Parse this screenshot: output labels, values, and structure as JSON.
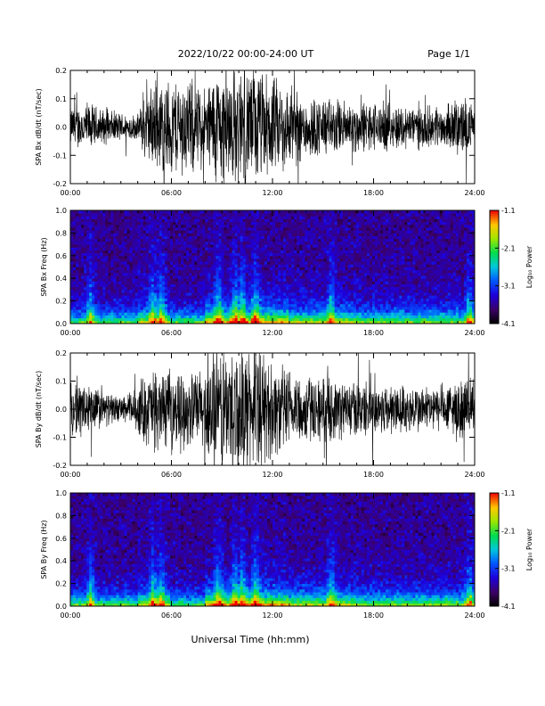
{
  "header": {
    "title": "2022/10/22  00:00-24:00 UT",
    "page": "Page 1/1"
  },
  "xaxis": {
    "label": "Universal Time (hh:mm)",
    "ticks": [
      "00:00",
      "06:00",
      "12:00",
      "18:00",
      "24:00"
    ]
  },
  "colorbar": {
    "label": "Log₁₀ Power",
    "ticks": [
      "-1.1",
      "-2.1",
      "-3.1",
      "-4.1"
    ]
  },
  "chart_data": [
    {
      "type": "line",
      "ylabel": "SPA Bx dB/dt (nT/sec)",
      "ylim": [
        -0.2,
        0.2
      ],
      "xlim": [
        0,
        24
      ],
      "yticks": [
        "0.2",
        "0.1",
        "0.0",
        "-0.1",
        "-0.2"
      ],
      "amplitude_envelope": {
        "x_hours": [
          0,
          1,
          2,
          3,
          4,
          4.3,
          5,
          6,
          7,
          8,
          8.5,
          9,
          10,
          11,
          12,
          13,
          14,
          16,
          18,
          20,
          22,
          23.5,
          24
        ],
        "amp": [
          0.08,
          0.1,
          0.07,
          0.06,
          0.05,
          0.12,
          0.18,
          0.2,
          0.2,
          0.16,
          0.22,
          0.24,
          0.24,
          0.24,
          0.2,
          0.17,
          0.13,
          0.11,
          0.1,
          0.09,
          0.08,
          0.12,
          0.07
        ]
      }
    },
    {
      "type": "heatmap",
      "ylabel": "SPA Bx Freq (Hz)",
      "ylim": [
        0,
        1
      ],
      "xlim": [
        0,
        24
      ],
      "yticks": [
        "1.0",
        "0.8",
        "0.6",
        "0.4",
        "0.2",
        "0.0"
      ],
      "colorscale": "rainbow",
      "zlim": [
        -4.1,
        -1.1
      ],
      "bursts_hours": [
        1.2,
        4.9,
        5.4,
        8.8,
        9.8,
        10.2,
        11.0,
        15.5,
        23.7
      ]
    },
    {
      "type": "line",
      "ylabel": "SPA By dB/dt (nT/sec)",
      "ylim": [
        -0.2,
        0.2
      ],
      "xlim": [
        0,
        24
      ],
      "yticks": [
        "0.2",
        "0.1",
        "0.0",
        "-0.1",
        "-0.2"
      ],
      "amplitude_envelope": {
        "x_hours": [
          0,
          1,
          2,
          3,
          3.8,
          4.3,
          5,
          6,
          7,
          8,
          8.4,
          9,
          10,
          11,
          12,
          13,
          14,
          16,
          18,
          20,
          22,
          23.5,
          24
        ],
        "amp": [
          0.1,
          0.12,
          0.07,
          0.05,
          0.08,
          0.14,
          0.16,
          0.15,
          0.15,
          0.17,
          0.25,
          0.26,
          0.26,
          0.24,
          0.2,
          0.16,
          0.14,
          0.12,
          0.11,
          0.1,
          0.09,
          0.14,
          0.09
        ]
      }
    },
    {
      "type": "heatmap",
      "ylabel": "SPA By Freq (Hz)",
      "ylim": [
        0,
        1
      ],
      "xlim": [
        0,
        24
      ],
      "yticks": [
        "1.0",
        "0.8",
        "0.6",
        "0.4",
        "0.2",
        "0.0"
      ],
      "colorscale": "rainbow",
      "zlim": [
        -4.1,
        -1.1
      ],
      "bursts_hours": [
        1.2,
        4.9,
        5.4,
        8.8,
        9.8,
        10.2,
        11.0,
        15.5,
        23.7
      ]
    }
  ]
}
